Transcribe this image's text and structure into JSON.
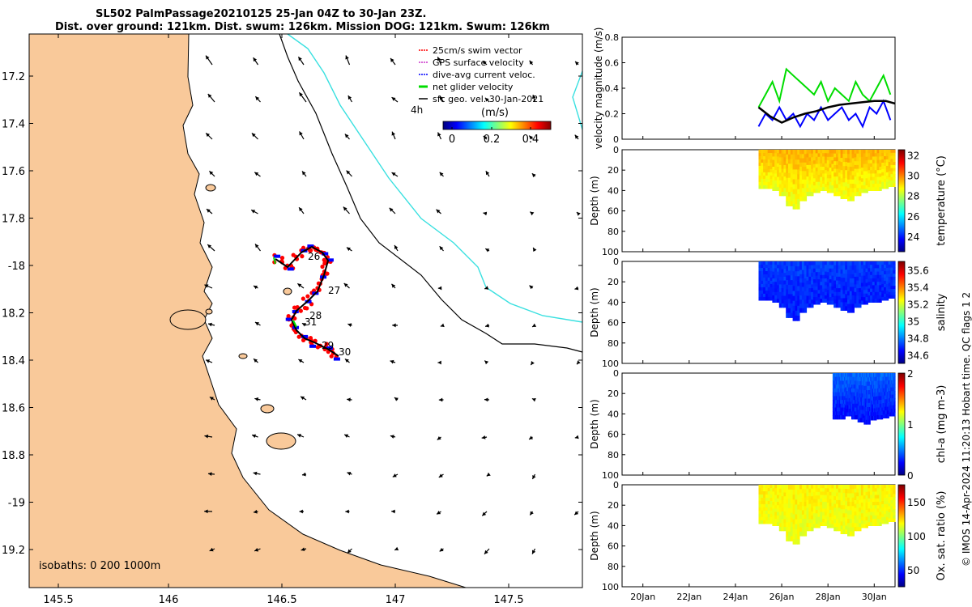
{
  "title_line1": "SL502 PalmPassage20210125 25-Jan 04Z to 30-Jan 23Z.",
  "title_line2": "Dist. over ground: 121km. Dist. swum: 126km. Mission DOG: 121km. Swum: 126km",
  "side_note": "© IMOS 14-Apr-2024 11:20:13 Hobart time. QC flags 1  2",
  "colors": {
    "land": "#f9c99a",
    "coast": "#000000",
    "isobath_200": "#000000",
    "isobath_1000": "#39e0e0",
    "track_swim": "#ff0000",
    "track_dac": "#0000ff",
    "track_net": "#00dd00",
    "gps": "#cc33cc"
  },
  "map": {
    "lon_ticks": [
      "145.5",
      "146",
      "146.5",
      "147",
      "147.5"
    ],
    "lat_ticks": [
      "17.2",
      "17.4",
      "17.6",
      "17.8",
      "-18",
      "18.2",
      "18.4",
      "18.6",
      "18.8",
      "-19",
      "19.2"
    ],
    "legend": [
      {
        "label": "25cm/s swim vector",
        "color": "#ff0000"
      },
      {
        "label": "GPS surface velocity",
        "color": "#cc33cc"
      },
      {
        "label": "dive-avg current veloc.",
        "color": "#0000ff"
      },
      {
        "label": "net glider velocity",
        "color": "#00dd00"
      },
      {
        "label": "sfc geo. vel. 30-Jan-2021",
        "color": "#000000"
      }
    ],
    "time_label": "4h",
    "colorbar_title": "(m/s)",
    "colorbar_ticks": [
      "0",
      "0.2",
      "0.4"
    ],
    "day_labels": [
      "26",
      "27",
      "28",
      "31",
      "29",
      "30"
    ],
    "isobath_note": "isobaths: 0   200  1000m"
  },
  "chart_data": [
    {
      "type": "line",
      "ylabel": "velocity magnitude (m/s)",
      "ylim": [
        0,
        0.8
      ],
      "y_ticks": [
        "0.8",
        "0.6",
        "0.4",
        "0.2",
        "0"
      ],
      "x_ticks": [
        "20Jan",
        "22Jan",
        "24Jan",
        "26Jan",
        "28Jan",
        "30Jan"
      ],
      "series": [
        {
          "color": "#00dd00",
          "x": [
            25.0,
            25.3,
            25.6,
            25.9,
            26.2,
            26.5,
            26.8,
            27.1,
            27.4,
            27.7,
            28.0,
            28.3,
            28.6,
            28.9,
            29.2,
            29.5,
            29.8,
            30.1,
            30.4,
            30.7
          ],
          "values": [
            0.25,
            0.35,
            0.45,
            0.3,
            0.55,
            0.5,
            0.45,
            0.4,
            0.35,
            0.45,
            0.3,
            0.4,
            0.35,
            0.3,
            0.45,
            0.35,
            0.3,
            0.4,
            0.5,
            0.35
          ]
        },
        {
          "color": "#0000ff",
          "x": [
            25.0,
            25.3,
            25.6,
            25.9,
            26.2,
            26.5,
            26.8,
            27.1,
            27.4,
            27.7,
            28.0,
            28.3,
            28.6,
            28.9,
            29.2,
            29.5,
            29.8,
            30.1,
            30.4,
            30.7
          ],
          "values": [
            0.1,
            0.2,
            0.15,
            0.25,
            0.15,
            0.2,
            0.1,
            0.2,
            0.15,
            0.25,
            0.15,
            0.2,
            0.25,
            0.15,
            0.2,
            0.1,
            0.25,
            0.2,
            0.3,
            0.15
          ]
        },
        {
          "color": "#000000",
          "x": [
            25.0,
            25.5,
            26.0,
            26.5,
            27.0,
            27.5,
            28.0,
            28.5,
            29.0,
            29.5,
            30.0,
            30.5,
            30.9
          ],
          "values": [
            0.25,
            0.18,
            0.13,
            0.17,
            0.2,
            0.22,
            0.25,
            0.27,
            0.28,
            0.29,
            0.3,
            0.3,
            0.28
          ]
        }
      ]
    },
    {
      "type": "heatmap",
      "ylabel": "Depth (m)",
      "colorbar_label": "temperature (°C)",
      "colorbar_ticks": [
        "32",
        "30",
        "28",
        "26",
        "24"
      ],
      "clim": [
        22.5,
        32.5
      ],
      "ylim": [
        0,
        100
      ],
      "y_ticks": [
        "0",
        "20",
        "40",
        "60",
        "80",
        "100"
      ],
      "x_range": [
        25.0,
        30.9
      ],
      "bottom_depth": [
        38,
        38,
        40,
        45,
        55,
        58,
        50,
        45,
        42,
        40,
        42,
        45,
        48,
        50,
        45,
        42,
        40,
        40,
        38,
        36
      ],
      "surface_value": 29.5,
      "bottom_value": 28.5
    },
    {
      "type": "heatmap",
      "ylabel": "Depth (m)",
      "colorbar_label": "salinity",
      "colorbar_ticks": [
        "35.6",
        "35.4",
        "35.2",
        "35",
        "34.8",
        "34.6"
      ],
      "clim": [
        34.5,
        35.7
      ],
      "ylim": [
        0,
        100
      ],
      "y_ticks": [
        "0",
        "20",
        "40",
        "60",
        "80",
        "100"
      ],
      "x_range": [
        25.0,
        30.9
      ],
      "bottom_depth": [
        38,
        38,
        40,
        45,
        55,
        58,
        50,
        45,
        42,
        40,
        42,
        45,
        48,
        50,
        45,
        42,
        40,
        40,
        38,
        36
      ],
      "surface_value": 34.72,
      "bottom_value": 34.68
    },
    {
      "type": "heatmap",
      "ylabel": "Depth (m)",
      "colorbar_label": "chl-a (mg m-3)",
      "colorbar_ticks": [
        "2",
        "1",
        "0"
      ],
      "clim": [
        0,
        2
      ],
      "ylim": [
        0,
        100
      ],
      "y_ticks": [
        "0",
        "20",
        "40",
        "60",
        "80",
        "100"
      ],
      "x_range": [
        28.2,
        30.9
      ],
      "bottom_depth": [
        45,
        45,
        42,
        45,
        48,
        50,
        46,
        45,
        44,
        42
      ],
      "surface_value": 0.45,
      "bottom_value": 0.25
    },
    {
      "type": "heatmap",
      "ylabel": "Depth (m)",
      "colorbar_label": "Ox. sat. ratio (%)",
      "colorbar_ticks": [
        "150",
        "100",
        "50"
      ],
      "clim": [
        25,
        175
      ],
      "ylim": [
        0,
        100
      ],
      "y_ticks": [
        "0",
        "20",
        "40",
        "60",
        "80",
        "100"
      ],
      "x_range": [
        25.0,
        30.9
      ],
      "bottom_depth": [
        38,
        38,
        40,
        45,
        55,
        58,
        50,
        45,
        42,
        40,
        42,
        45,
        48,
        50,
        45,
        42,
        40,
        40,
        38,
        36
      ],
      "surface_value": 120,
      "bottom_value": 116
    }
  ]
}
